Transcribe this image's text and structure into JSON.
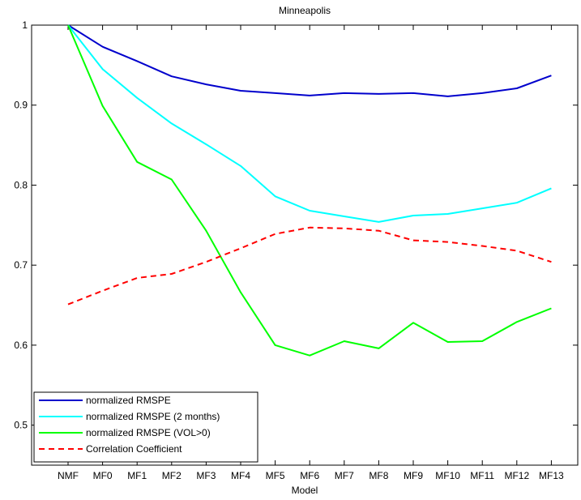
{
  "chart_data": {
    "type": "line",
    "title": "Minneapolis",
    "xlabel": "Model",
    "ylabel": "",
    "categories": [
      "NMF",
      "MF0",
      "MF1",
      "MF2",
      "MF3",
      "MF4",
      "MF5",
      "MF6",
      "MF7",
      "MF8",
      "MF9",
      "MF10",
      "MF11",
      "MF12",
      "MF13"
    ],
    "ylim": [
      0.45,
      1.0
    ],
    "yticks": [
      "0.5",
      "0.6",
      "0.7",
      "0.8",
      "0.9",
      "1"
    ],
    "grid": false,
    "legend_position": "bottom-left",
    "series": [
      {
        "name": "normalized RMSPE",
        "color": "#0000cc",
        "dash": "solid",
        "values": [
          1.0,
          0.973,
          0.955,
          0.936,
          0.926,
          0.918,
          0.915,
          0.912,
          0.915,
          0.914,
          0.915,
          0.911,
          0.915,
          0.921,
          0.937
        ]
      },
      {
        "name": "normalized RMSPE (2 months)",
        "color": "#00ffff",
        "dash": "solid",
        "values": [
          1.0,
          0.945,
          0.909,
          0.877,
          0.851,
          0.824,
          0.786,
          0.768,
          0.761,
          0.754,
          0.762,
          0.764,
          0.771,
          0.778,
          0.796
        ]
      },
      {
        "name": "normalized RMSPE (VOL>0)",
        "color": "#00ff00",
        "dash": "solid",
        "values": [
          1.0,
          0.899,
          0.829,
          0.807,
          0.743,
          0.666,
          0.6,
          0.587,
          0.605,
          0.596,
          0.628,
          0.604,
          0.605,
          0.629,
          0.646
        ]
      },
      {
        "name": "Correlation Coefficient",
        "color": "#ff0000",
        "dash": "dashed",
        "values": [
          0.651,
          0.668,
          0.684,
          0.689,
          0.704,
          0.721,
          0.739,
          0.747,
          0.746,
          0.743,
          0.731,
          0.729,
          0.724,
          0.718,
          0.704
        ]
      }
    ]
  }
}
